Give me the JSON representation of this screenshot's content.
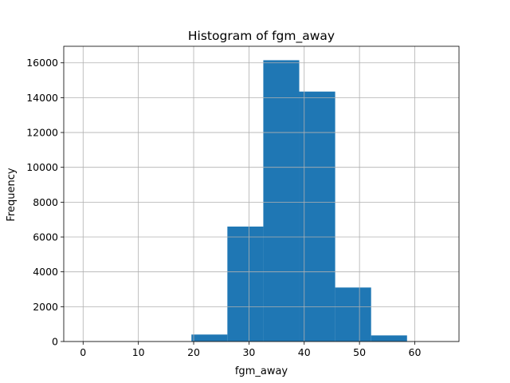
{
  "chart_data": {
    "type": "bar",
    "title": "Histogram of fgm_away",
    "xlabel": "fgm_away",
    "ylabel": "Frequency",
    "bin_edges": [
      19.6,
      26.1,
      32.6,
      39.1,
      45.6,
      52.1,
      58.6
    ],
    "values": [
      400,
      6600,
      16150,
      14350,
      3100,
      350
    ],
    "xlim": [
      -3.5,
      68.0
    ],
    "ylim": [
      0,
      16950
    ],
    "x_ticks": [
      0,
      10,
      20,
      30,
      40,
      50,
      60
    ],
    "y_ticks": [
      0,
      2000,
      4000,
      6000,
      8000,
      10000,
      12000,
      14000,
      16000
    ],
    "grid": true,
    "bar_color": "#1f77b4",
    "grid_color": "#b0b0b0"
  }
}
